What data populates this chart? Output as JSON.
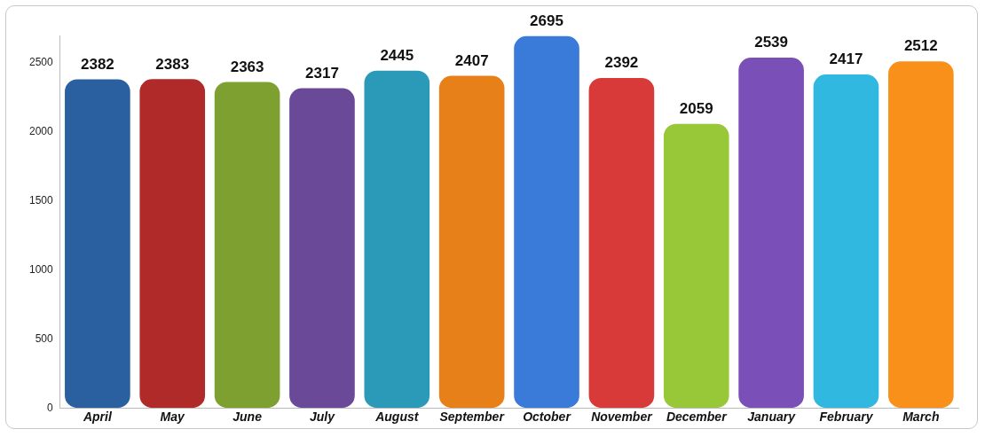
{
  "chart_data": {
    "type": "bar",
    "categories": [
      "April",
      "May",
      "June",
      "July",
      "August",
      "September",
      "October",
      "November",
      "December",
      "January",
      "February",
      "March"
    ],
    "values": [
      2382,
      2383,
      2363,
      2317,
      2445,
      2407,
      2695,
      2392,
      2059,
      2539,
      2417,
      2512
    ],
    "colors": [
      "#2a5fa0",
      "#b02a2a",
      "#7ea030",
      "#6a4a98",
      "#2a9ab8",
      "#e8801a",
      "#3a7ad8",
      "#d83a3a",
      "#98c838",
      "#7a50b8",
      "#30b8e0",
      "#f8901a"
    ],
    "ylim": [
      0,
      2700
    ],
    "yticks": [
      0,
      500,
      1000,
      1500,
      2000,
      2500
    ],
    "grid": false,
    "legend": false,
    "data_labels": true
  }
}
